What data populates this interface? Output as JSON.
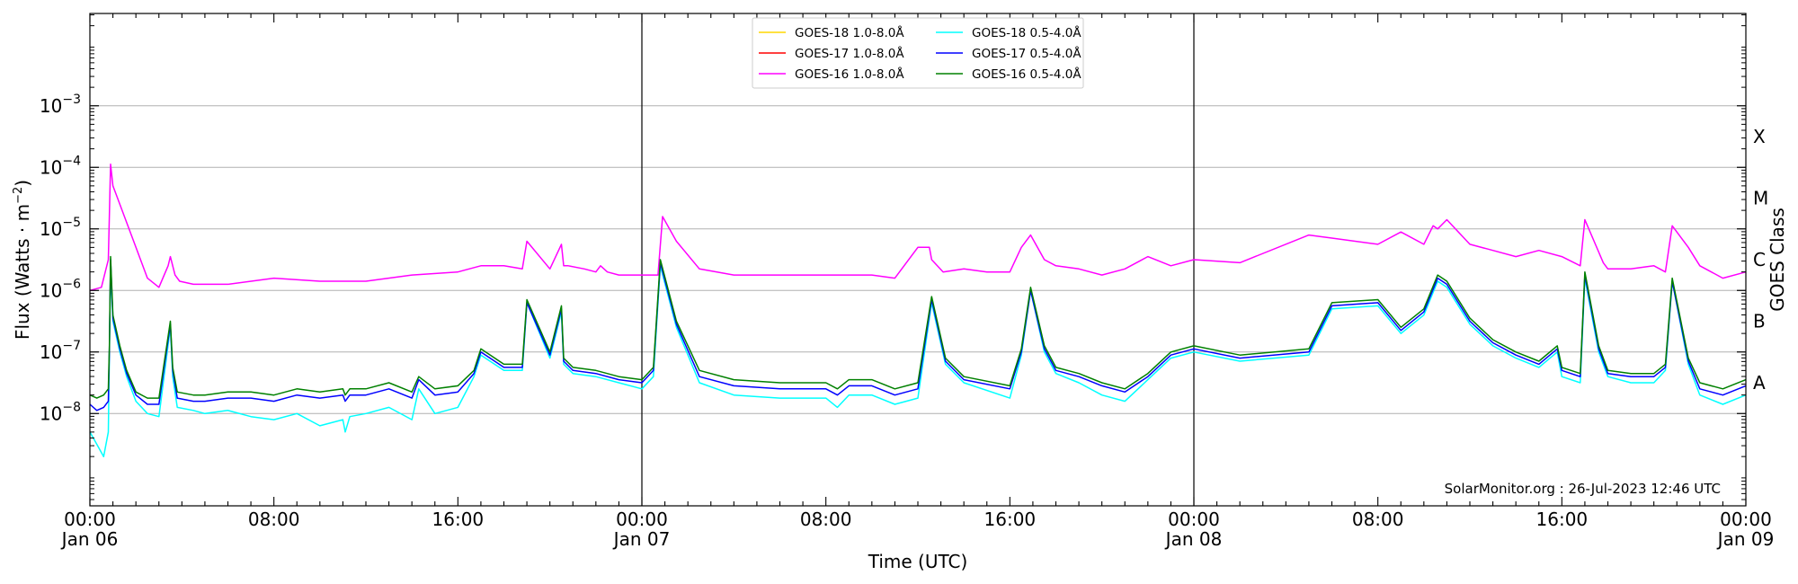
{
  "chart_data": {
    "type": "line",
    "y_scale": "log",
    "ylabel_prefix": "Flux (Watts · m",
    "ylabel_exp": "−2",
    "ylabel_suffix": ")",
    "xlabel": "Time (UTC)",
    "right_label": "GOES Class",
    "watermark": "SolarMonitor.org : 26-Jul-2023 12:46 UTC",
    "ylim_log10": [
      -9.5,
      -1.5
    ],
    "xlim_hours": [
      0,
      72
    ],
    "gridlines_log10": [
      -8,
      -7,
      -6,
      -5,
      -4,
      -3
    ],
    "y_ticks": [
      {
        "exp": -8,
        "base": "10",
        "sup": "−8"
      },
      {
        "exp": -7,
        "base": "10",
        "sup": "−7"
      },
      {
        "exp": -6,
        "base": "10",
        "sup": "−6"
      },
      {
        "exp": -5,
        "base": "10",
        "sup": "−5"
      },
      {
        "exp": -4,
        "base": "10",
        "sup": "−4"
      },
      {
        "exp": -3,
        "base": "10",
        "sup": "−3"
      }
    ],
    "x_ticks": [
      {
        "h": 0,
        "time": "00:00",
        "date": "Jan 06"
      },
      {
        "h": 8,
        "time": "08:00",
        "date": ""
      },
      {
        "h": 16,
        "time": "16:00",
        "date": ""
      },
      {
        "h": 24,
        "time": "00:00",
        "date": "Jan 07"
      },
      {
        "h": 32,
        "time": "08:00",
        "date": ""
      },
      {
        "h": 40,
        "time": "16:00",
        "date": ""
      },
      {
        "h": 48,
        "time": "00:00",
        "date": "Jan 08"
      },
      {
        "h": 56,
        "time": "08:00",
        "date": ""
      },
      {
        "h": 64,
        "time": "16:00",
        "date": ""
      },
      {
        "h": 72,
        "time": "00:00",
        "date": "Jan 09"
      }
    ],
    "day_dividers_hours": [
      24,
      48
    ],
    "goes_classes": [
      {
        "label": "X",
        "log10": -3.5
      },
      {
        "label": "M",
        "log10": -4.5
      },
      {
        "label": "C",
        "log10": -5.5
      },
      {
        "label": "B",
        "log10": -6.5
      },
      {
        "label": "A",
        "log10": -7.5
      }
    ],
    "legend": [
      {
        "label": "GOES-18 1.0-8.0Å",
        "color": "#ffd700"
      },
      {
        "label": "GOES-17 1.0-8.0Å",
        "color": "#ff0000"
      },
      {
        "label": "GOES-16 1.0-8.0Å",
        "color": "#ff00ff"
      },
      {
        "label": "GOES-18 0.5-4.0Å",
        "color": "#00ffff"
      },
      {
        "label": "GOES-17 0.5-4.0Å",
        "color": "#0000ff"
      },
      {
        "label": "GOES-16 0.5-4.0Å",
        "color": "#008000"
      }
    ],
    "series": [
      {
        "name": "GOES-16 1.0-8.0Å",
        "color": "#ff00ff",
        "x": [
          0,
          0.5,
          0.8,
          0.9,
          1.0,
          1.5,
          2.0,
          2.5,
          3.0,
          3.4,
          3.5,
          3.7,
          3.9,
          4.5,
          6,
          8,
          10,
          12,
          14,
          16,
          17,
          18,
          18.8,
          19,
          20,
          20.5,
          20.6,
          20.8,
          21.5,
          22,
          22.2,
          22.5,
          23,
          24,
          24.7,
          24.9,
          25.5,
          26.5,
          28,
          30,
          32,
          34,
          35,
          36,
          36.5,
          36.6,
          37.1,
          38,
          39,
          40,
          40.5,
          40.9,
          41.5,
          42,
          43,
          44,
          45,
          46,
          47,
          48,
          50,
          53,
          54,
          56,
          57,
          58,
          58.4,
          58.6,
          59,
          60,
          61,
          62,
          63,
          64,
          64.8,
          65,
          65.8,
          66,
          67,
          68,
          68.5,
          68.8,
          69.5,
          70,
          71,
          72
        ],
        "log10": [
          -6.0,
          -5.95,
          -5.5,
          -3.95,
          -4.3,
          -4.8,
          -5.3,
          -5.8,
          -5.95,
          -5.6,
          -5.45,
          -5.75,
          -5.85,
          -5.9,
          -5.9,
          -5.8,
          -5.85,
          -5.85,
          -5.75,
          -5.7,
          -5.6,
          -5.6,
          -5.65,
          -5.2,
          -5.65,
          -5.25,
          -5.6,
          -5.6,
          -5.65,
          -5.7,
          -5.6,
          -5.7,
          -5.75,
          -5.75,
          -5.75,
          -4.8,
          -5.2,
          -5.65,
          -5.75,
          -5.75,
          -5.75,
          -5.75,
          -5.8,
          -5.3,
          -5.3,
          -5.5,
          -5.7,
          -5.65,
          -5.7,
          -5.7,
          -5.3,
          -5.1,
          -5.5,
          -5.6,
          -5.65,
          -5.75,
          -5.65,
          -5.45,
          -5.6,
          -5.5,
          -5.55,
          -5.1,
          -5.15,
          -5.25,
          -5.05,
          -5.25,
          -4.95,
          -5.0,
          -4.85,
          -5.25,
          -5.35,
          -5.45,
          -5.35,
          -5.45,
          -5.6,
          -4.85,
          -5.55,
          -5.65,
          -5.65,
          -5.6,
          -5.7,
          -4.95,
          -5.3,
          -5.6,
          -5.8,
          -5.7
        ]
      },
      {
        "name": "GOES-18 0.5-4.0Å",
        "color": "#00ffff",
        "x": [
          0,
          0.3,
          0.6,
          0.8,
          0.85,
          0.9,
          1.0,
          1.3,
          1.6,
          2.0,
          2.5,
          3.0,
          3.5,
          3.6,
          3.8,
          4.5,
          5,
          6,
          7,
          8,
          9,
          10,
          11,
          11.1,
          11.3,
          12,
          13,
          14,
          14.3,
          15,
          16,
          16.7,
          17,
          18,
          18.8,
          19,
          20,
          20.5,
          20.6,
          21,
          22,
          23,
          24,
          24.5,
          24.8,
          25.5,
          26.5,
          28,
          30,
          32,
          32.5,
          33,
          34,
          35,
          36,
          36.6,
          37.2,
          38,
          40,
          40.5,
          40.9,
          41.5,
          42,
          43,
          44,
          45,
          46,
          47,
          48,
          50,
          53,
          54,
          56,
          57,
          58,
          58.6,
          59,
          60,
          61,
          62,
          63,
          63.8,
          64,
          64.8,
          65,
          65.6,
          66,
          67,
          68,
          68.5,
          68.8,
          69.5,
          70,
          71,
          72
        ],
        "log10": [
          -8.3,
          -8.5,
          -8.7,
          -8.3,
          -7.0,
          -5.6,
          -6.5,
          -7.0,
          -7.4,
          -7.8,
          -8.0,
          -8.05,
          -6.6,
          -7.4,
          -7.9,
          -7.95,
          -8.0,
          -7.95,
          -8.05,
          -8.1,
          -8.0,
          -8.2,
          -8.1,
          -8.3,
          -8.05,
          -8.0,
          -7.9,
          -8.1,
          -7.6,
          -8.0,
          -7.9,
          -7.4,
          -7.05,
          -7.3,
          -7.3,
          -6.2,
          -7.1,
          -6.35,
          -7.2,
          -7.35,
          -7.4,
          -7.5,
          -7.6,
          -7.4,
          -5.6,
          -6.6,
          -7.5,
          -7.7,
          -7.75,
          -7.75,
          -7.9,
          -7.7,
          -7.7,
          -7.85,
          -7.75,
          -6.2,
          -7.2,
          -7.5,
          -7.75,
          -7.05,
          -6.0,
          -7.0,
          -7.35,
          -7.5,
          -7.7,
          -7.8,
          -7.45,
          -7.1,
          -7.0,
          -7.15,
          -7.05,
          -6.3,
          -6.25,
          -6.7,
          -6.4,
          -5.85,
          -5.95,
          -6.55,
          -6.9,
          -7.1,
          -7.25,
          -7.0,
          -7.4,
          -7.5,
          -5.8,
          -7.0,
          -7.4,
          -7.5,
          -7.5,
          -7.3,
          -5.85,
          -7.2,
          -7.7,
          -7.85,
          -7.7
        ]
      },
      {
        "name": "GOES-17 0.5-4.0Å",
        "color": "#0000ff",
        "x": [
          0,
          0.3,
          0.6,
          0.8,
          0.85,
          0.9,
          1.0,
          1.3,
          1.6,
          2.0,
          2.5,
          3.0,
          3.5,
          3.6,
          3.8,
          4.5,
          5,
          6,
          7,
          8,
          9,
          10,
          11,
          11.1,
          11.3,
          12,
          13,
          14,
          14.3,
          15,
          16,
          16.7,
          17,
          18,
          18.8,
          19,
          20,
          20.5,
          20.6,
          21,
          22,
          23,
          24,
          24.5,
          24.8,
          25.5,
          26.5,
          28,
          30,
          32,
          32.5,
          33,
          34,
          35,
          36,
          36.6,
          37.2,
          38,
          40,
          40.5,
          40.9,
          41.5,
          42,
          43,
          44,
          45,
          46,
          47,
          48,
          50,
          53,
          54,
          56,
          57,
          58,
          58.6,
          59,
          60,
          61,
          62,
          63,
          63.8,
          64,
          64.8,
          65,
          65.6,
          66,
          67,
          68,
          68.5,
          68.8,
          69.5,
          70,
          71,
          72
        ],
        "log10": [
          -7.85,
          -7.95,
          -7.9,
          -7.8,
          -6.95,
          -5.5,
          -6.45,
          -6.95,
          -7.35,
          -7.7,
          -7.85,
          -7.85,
          -6.55,
          -7.3,
          -7.75,
          -7.8,
          -7.8,
          -7.75,
          -7.75,
          -7.8,
          -7.7,
          -7.75,
          -7.7,
          -7.8,
          -7.7,
          -7.7,
          -7.6,
          -7.75,
          -7.45,
          -7.7,
          -7.65,
          -7.35,
          -7.0,
          -7.25,
          -7.25,
          -6.2,
          -7.05,
          -6.3,
          -7.15,
          -7.3,
          -7.35,
          -7.45,
          -7.5,
          -7.3,
          -5.55,
          -6.55,
          -7.4,
          -7.55,
          -7.6,
          -7.6,
          -7.7,
          -7.55,
          -7.55,
          -7.7,
          -7.6,
          -6.15,
          -7.15,
          -7.45,
          -7.6,
          -7.0,
          -6.0,
          -6.95,
          -7.3,
          -7.4,
          -7.55,
          -7.65,
          -7.4,
          -7.05,
          -6.95,
          -7.1,
          -7.0,
          -6.25,
          -6.2,
          -6.65,
          -6.35,
          -5.8,
          -5.9,
          -6.5,
          -6.85,
          -7.05,
          -7.2,
          -6.95,
          -7.3,
          -7.4,
          -5.75,
          -6.95,
          -7.35,
          -7.4,
          -7.4,
          -7.25,
          -5.85,
          -7.15,
          -7.6,
          -7.7,
          -7.55
        ]
      },
      {
        "name": "GOES-16 0.5-4.0Å",
        "color": "#008000",
        "x": [
          0,
          0.3,
          0.6,
          0.8,
          0.85,
          0.9,
          1.0,
          1.3,
          1.6,
          2.0,
          2.5,
          3.0,
          3.5,
          3.6,
          3.8,
          4.5,
          5,
          6,
          7,
          8,
          9,
          10,
          11,
          11.1,
          11.3,
          12,
          13,
          14,
          14.3,
          15,
          16,
          16.7,
          17,
          18,
          18.8,
          19,
          20,
          20.5,
          20.6,
          21,
          22,
          23,
          24,
          24.5,
          24.8,
          25.5,
          26.5,
          28,
          30,
          32,
          32.5,
          33,
          34,
          35,
          36,
          36.6,
          37.2,
          38,
          40,
          40.5,
          40.9,
          41.5,
          42,
          43,
          44,
          45,
          46,
          47,
          48,
          50,
          53,
          54,
          56,
          57,
          58,
          58.6,
          59,
          60,
          61,
          62,
          63,
          63.8,
          64,
          64.8,
          65,
          65.6,
          66,
          67,
          68,
          68.5,
          68.8,
          69.5,
          70,
          71,
          72
        ],
        "log10": [
          -7.7,
          -7.75,
          -7.7,
          -7.6,
          -6.9,
          -5.45,
          -6.4,
          -6.9,
          -7.3,
          -7.65,
          -7.75,
          -7.75,
          -6.5,
          -7.25,
          -7.65,
          -7.7,
          -7.7,
          -7.65,
          -7.65,
          -7.7,
          -7.6,
          -7.65,
          -7.6,
          -7.7,
          -7.6,
          -7.6,
          -7.5,
          -7.65,
          -7.4,
          -7.6,
          -7.55,
          -7.3,
          -6.95,
          -7.2,
          -7.2,
          -6.15,
          -7.0,
          -6.25,
          -7.1,
          -7.25,
          -7.3,
          -7.4,
          -7.45,
          -7.25,
          -5.5,
          -6.5,
          -7.3,
          -7.45,
          -7.5,
          -7.5,
          -7.6,
          -7.45,
          -7.45,
          -7.6,
          -7.5,
          -6.1,
          -7.1,
          -7.4,
          -7.55,
          -6.95,
          -5.95,
          -6.9,
          -7.25,
          -7.35,
          -7.5,
          -7.6,
          -7.35,
          -7.0,
          -6.9,
          -7.05,
          -6.95,
          -6.2,
          -6.15,
          -6.6,
          -6.3,
          -5.75,
          -5.85,
          -6.45,
          -6.8,
          -7.0,
          -7.15,
          -6.9,
          -7.25,
          -7.35,
          -5.7,
          -6.9,
          -7.3,
          -7.35,
          -7.35,
          -7.2,
          -5.8,
          -7.1,
          -7.5,
          -7.6,
          -7.45
        ]
      }
    ]
  }
}
